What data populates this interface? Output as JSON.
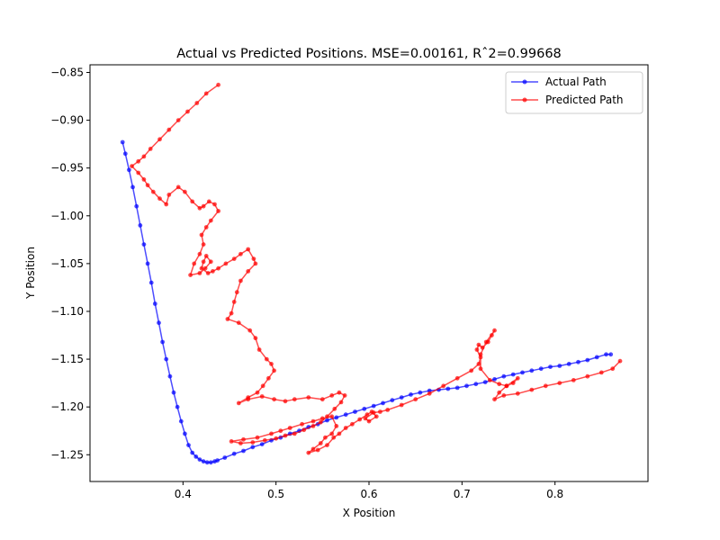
{
  "chart_data": {
    "type": "line",
    "title": "Actual vs Predicted Positions. MSE=0.00161, Rˆ2=0.99668",
    "xlabel": "X Position",
    "ylabel": "Y Position",
    "xlim": [
      0.3,
      0.9
    ],
    "ylim": [
      -1.278,
      -0.842
    ],
    "xticks": [
      0.4,
      0.5,
      0.6,
      0.7,
      0.8
    ],
    "xtick_labels": [
      "0.4",
      "0.5",
      "0.6",
      "0.7",
      "0.8"
    ],
    "yticks": [
      -1.25,
      -1.2,
      -1.15,
      -1.1,
      -1.05,
      -1.0,
      -0.95,
      -0.9,
      -0.85
    ],
    "ytick_labels": [
      "−1.25",
      "−1.20",
      "−1.15",
      "−1.10",
      "−1.05",
      "−1.00",
      "−0.95",
      "−0.90",
      "−0.85"
    ],
    "grid": false,
    "legend_position": "top-right",
    "series": [
      {
        "name": "Actual Path",
        "color": "#0000ff",
        "x": [
          0.335,
          0.338,
          0.342,
          0.346,
          0.35,
          0.354,
          0.358,
          0.362,
          0.366,
          0.37,
          0.374,
          0.378,
          0.382,
          0.386,
          0.39,
          0.394,
          0.398,
          0.402,
          0.406,
          0.41,
          0.414,
          0.418,
          0.422,
          0.426,
          0.43,
          0.434,
          0.437,
          0.445,
          0.455,
          0.465,
          0.475,
          0.485,
          0.495,
          0.505,
          0.515,
          0.525,
          0.535,
          0.545,
          0.555,
          0.565,
          0.575,
          0.585,
          0.595,
          0.605,
          0.615,
          0.625,
          0.635,
          0.645,
          0.655,
          0.665,
          0.675,
          0.685,
          0.695,
          0.705,
          0.715,
          0.725,
          0.735,
          0.745,
          0.755,
          0.765,
          0.775,
          0.785,
          0.795,
          0.805,
          0.815,
          0.825,
          0.835,
          0.845,
          0.855,
          0.86
        ],
        "y": [
          -0.923,
          -0.935,
          -0.952,
          -0.97,
          -0.99,
          -1.01,
          -1.03,
          -1.05,
          -1.07,
          -1.092,
          -1.112,
          -1.132,
          -1.15,
          -1.168,
          -1.185,
          -1.2,
          -1.215,
          -1.228,
          -1.24,
          -1.248,
          -1.252,
          -1.255,
          -1.257,
          -1.258,
          -1.258,
          -1.257,
          -1.256,
          -1.253,
          -1.249,
          -1.246,
          -1.242,
          -1.239,
          -1.235,
          -1.232,
          -1.228,
          -1.225,
          -1.221,
          -1.218,
          -1.214,
          -1.211,
          -1.208,
          -1.205,
          -1.202,
          -1.199,
          -1.196,
          -1.193,
          -1.19,
          -1.187,
          -1.185,
          -1.183,
          -1.182,
          -1.181,
          -1.18,
          -1.178,
          -1.176,
          -1.174,
          -1.171,
          -1.168,
          -1.166,
          -1.164,
          -1.162,
          -1.16,
          -1.158,
          -1.157,
          -1.155,
          -1.153,
          -1.151,
          -1.148,
          -1.145,
          -1.145
        ]
      },
      {
        "name": "Predicted Path",
        "color": "#ff0000",
        "x": [
          0.438,
          0.425,
          0.415,
          0.405,
          0.395,
          0.385,
          0.375,
          0.365,
          0.358,
          0.352,
          0.345,
          0.352,
          0.358,
          0.362,
          0.368,
          0.375,
          0.382,
          0.385,
          0.395,
          0.402,
          0.41,
          0.418,
          0.422,
          0.428,
          0.434,
          0.438,
          0.43,
          0.425,
          0.42,
          0.422,
          0.418,
          0.412,
          0.408,
          0.418,
          0.424,
          0.43,
          0.425,
          0.422,
          0.42,
          0.427,
          0.432,
          0.438,
          0.446,
          0.455,
          0.462,
          0.47,
          0.476,
          0.478,
          0.47,
          0.462,
          0.458,
          0.455,
          0.452,
          0.448,
          0.46,
          0.472,
          0.478,
          0.482,
          0.49,
          0.495,
          0.498,
          0.492,
          0.486,
          0.48,
          0.47,
          0.46,
          0.47,
          0.485,
          0.498,
          0.51,
          0.52,
          0.535,
          0.55,
          0.56,
          0.568,
          0.574,
          0.57,
          0.563,
          0.555,
          0.548,
          0.54,
          0.53,
          0.52,
          0.51,
          0.5,
          0.488,
          0.475,
          0.462,
          0.452,
          0.465,
          0.48,
          0.495,
          0.505,
          0.515,
          0.528,
          0.54,
          0.55,
          0.56,
          0.565,
          0.56,
          0.553,
          0.548,
          0.54,
          0.535,
          0.545,
          0.555,
          0.562,
          0.568,
          0.575,
          0.582,
          0.59,
          0.598,
          0.603,
          0.608,
          0.6,
          0.596,
          0.605,
          0.612,
          0.62,
          0.635,
          0.65,
          0.665,
          0.68,
          0.695,
          0.71,
          0.718,
          0.72,
          0.716,
          0.718,
          0.722,
          0.728,
          0.732,
          0.735,
          0.726,
          0.72,
          0.72,
          0.73,
          0.74,
          0.748,
          0.755,
          0.76,
          0.748,
          0.74,
          0.735,
          0.745,
          0.76,
          0.775,
          0.79,
          0.805,
          0.82,
          0.835,
          0.85,
          0.862,
          0.87
        ],
        "y": [
          -0.863,
          -0.872,
          -0.882,
          -0.891,
          -0.9,
          -0.91,
          -0.92,
          -0.93,
          -0.938,
          -0.943,
          -0.948,
          -0.955,
          -0.962,
          -0.968,
          -0.975,
          -0.982,
          -0.988,
          -0.978,
          -0.97,
          -0.975,
          -0.985,
          -0.992,
          -0.99,
          -0.985,
          -0.988,
          -0.995,
          -1.005,
          -1.012,
          -1.02,
          -1.03,
          -1.04,
          -1.05,
          -1.062,
          -1.06,
          -1.055,
          -1.048,
          -1.042,
          -1.048,
          -1.055,
          -1.06,
          -1.058,
          -1.055,
          -1.05,
          -1.045,
          -1.04,
          -1.035,
          -1.045,
          -1.05,
          -1.058,
          -1.068,
          -1.08,
          -1.09,
          -1.102,
          -1.108,
          -1.112,
          -1.12,
          -1.128,
          -1.14,
          -1.15,
          -1.155,
          -1.162,
          -1.17,
          -1.178,
          -1.185,
          -1.19,
          -1.196,
          -1.192,
          -1.189,
          -1.192,
          -1.194,
          -1.192,
          -1.19,
          -1.192,
          -1.188,
          -1.185,
          -1.188,
          -1.195,
          -1.202,
          -1.21,
          -1.216,
          -1.22,
          -1.224,
          -1.228,
          -1.23,
          -1.233,
          -1.235,
          -1.237,
          -1.238,
          -1.236,
          -1.234,
          -1.232,
          -1.228,
          -1.225,
          -1.222,
          -1.218,
          -1.215,
          -1.212,
          -1.21,
          -1.22,
          -1.228,
          -1.232,
          -1.238,
          -1.244,
          -1.248,
          -1.245,
          -1.24,
          -1.232,
          -1.228,
          -1.222,
          -1.218,
          -1.213,
          -1.208,
          -1.205,
          -1.21,
          -1.215,
          -1.212,
          -1.206,
          -1.205,
          -1.203,
          -1.198,
          -1.192,
          -1.186,
          -1.178,
          -1.17,
          -1.162,
          -1.155,
          -1.148,
          -1.14,
          -1.135,
          -1.138,
          -1.132,
          -1.125,
          -1.12,
          -1.132,
          -1.145,
          -1.16,
          -1.172,
          -1.176,
          -1.178,
          -1.175,
          -1.17,
          -1.178,
          -1.185,
          -1.192,
          -1.188,
          -1.186,
          -1.182,
          -1.178,
          -1.175,
          -1.172,
          -1.168,
          -1.164,
          -1.16,
          -1.152
        ]
      }
    ]
  }
}
